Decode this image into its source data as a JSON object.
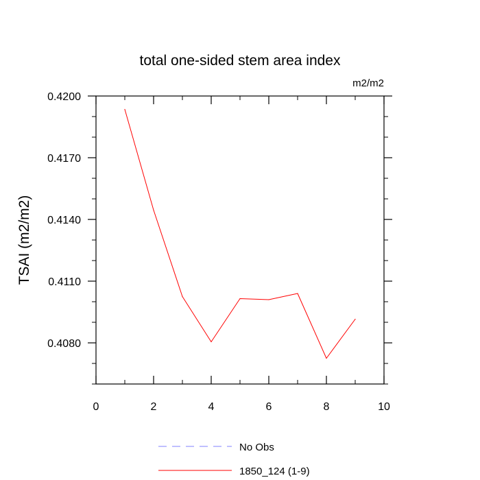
{
  "chart_data": {
    "type": "line",
    "title": "total one-sided stem area index",
    "units_label": "m2/m2",
    "ylabel": "TSAI  (m2/m2)",
    "xlabel": "",
    "xlim": [
      0,
      10
    ],
    "ylim": [
      0.406,
      0.42
    ],
    "x_ticks": [
      0,
      2,
      4,
      6,
      8,
      10
    ],
    "x_tick_labels": [
      "0",
      "2",
      "4",
      "6",
      "8",
      "10"
    ],
    "y_ticks": [
      0.408,
      0.411,
      0.414,
      0.417,
      0.42
    ],
    "y_tick_labels": [
      "0.4080",
      "0.4110",
      "0.4140",
      "0.4170",
      "0.4200"
    ],
    "grid": false,
    "legend_position": "bottom",
    "series": [
      {
        "name": "1850_124 (1-9)",
        "color": "#ff0000",
        "style": "solid",
        "x": [
          1,
          2,
          3,
          4,
          5,
          6,
          7,
          8,
          9
        ],
        "y": [
          0.41935,
          0.41445,
          0.41025,
          0.40805,
          0.41015,
          0.4101,
          0.4104,
          0.40725,
          0.40915
        ]
      }
    ],
    "legend": [
      {
        "label": "No Obs",
        "color": "#8080ff",
        "style": "dashed"
      },
      {
        "label": "1850_124 (1-9)",
        "color": "#ff0000",
        "style": "solid"
      }
    ]
  }
}
